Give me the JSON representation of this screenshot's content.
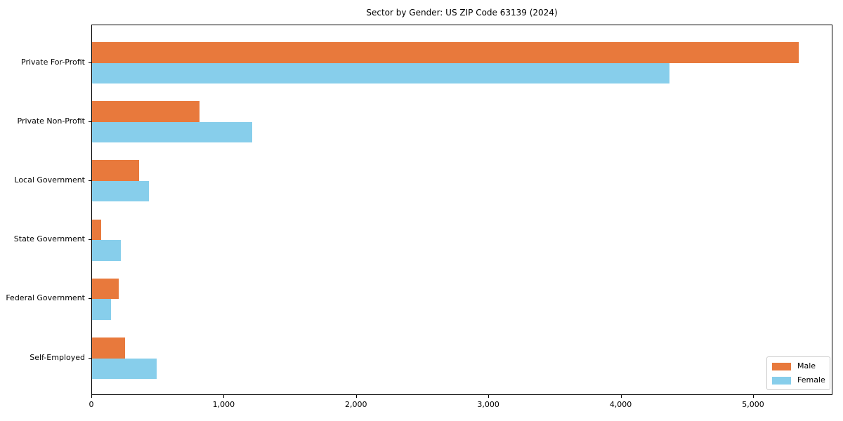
{
  "title": "Sector by Gender: US ZIP Code 63139 (2024)",
  "chart_data": {
    "type": "bar",
    "orientation": "horizontal",
    "title": "Sector by Gender: US ZIP Code 63139 (2024)",
    "categories": [
      "Private For-Profit",
      "Private Non-Profit",
      "Local Government",
      "State Government",
      "Federal Government",
      "Self-Employed"
    ],
    "series": [
      {
        "name": "Male",
        "color": "#e8793c",
        "values": [
          5340,
          810,
          355,
          70,
          200,
          250
        ]
      },
      {
        "name": "Female",
        "color": "#87ceeb",
        "values": [
          4365,
          1210,
          430,
          215,
          145,
          490
        ]
      }
    ],
    "xlabel": "",
    "ylabel": "",
    "xlim": [
      0,
      5600
    ],
    "xticks": [
      0,
      1000,
      2000,
      3000,
      4000,
      5000
    ],
    "xtick_labels": [
      "0",
      "1,000",
      "2,000",
      "3,000",
      "4,000",
      "5,000"
    ],
    "grid": false,
    "legend_position": "lower right",
    "legend_labels": [
      "Male",
      "Female"
    ]
  }
}
